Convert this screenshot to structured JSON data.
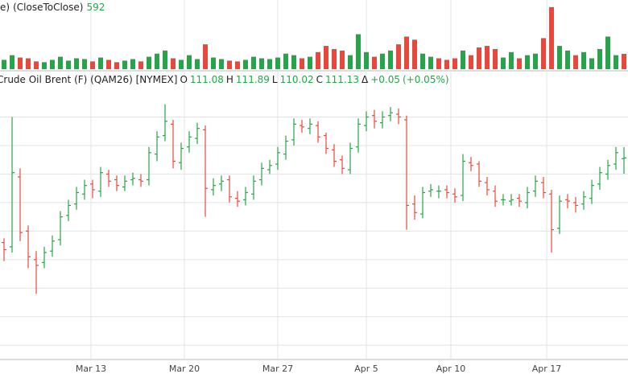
{
  "chart_data": {
    "type": "ohlc",
    "title": "Crude Oil Brent (F) (QAM26) [NYMEX]",
    "volume_prefix": "e)",
    "volume_title": "(CloseToClose)",
    "labels": {
      "open": "O",
      "high": "H",
      "low": "L",
      "close": "C",
      "change": "Δ"
    },
    "change": {
      "value": 0.05,
      "label": "+0.05"
    },
    "change_pct": {
      "value": 0.05,
      "label": "(+0.05%)"
    },
    "up_color": "#27a34a",
    "down_color": "#e8483b",
    "xlim": [
      -0.5,
      77.5
    ],
    "xticks": [
      {
        "value": 10.8,
        "label": "Mar 13"
      },
      {
        "value": 22.4,
        "label": "Mar 20"
      },
      {
        "value": 34,
        "label": "Mar 27"
      },
      {
        "value": 45,
        "label": "Apr 5"
      },
      {
        "value": 55.5,
        "label": "Apr 10"
      },
      {
        "value": 67.4,
        "label": "Apr 17"
      }
    ],
    "ylim": [
      97,
      116
    ],
    "ygrid": [
      98,
      100,
      102,
      104,
      106,
      108,
      110,
      112,
      114
    ],
    "grid": true,
    "open": [
      105.2,
      104.9,
      109.8,
      106.0,
      104.0,
      103.8,
      104.6,
      105.4,
      107.1,
      107.9,
      108.6,
      109.3,
      108.8,
      110.0,
      109.6,
      109.1,
      109.6,
      109.6,
      109.6,
      111.4,
      112.7,
      113.5,
      110.8,
      111.9,
      112.5,
      113.1,
      108.9,
      109.3,
      109.6,
      108.3,
      108.2,
      108.6,
      109.6,
      110.3,
      110.7,
      111.4,
      112.4,
      113.4,
      113.2,
      113.4,
      112.7,
      111.7,
      111.0,
      110.3,
      111.9,
      113.4,
      114.1,
      113.6,
      114.1,
      114.2,
      113.8,
      107.9,
      107.2,
      108.8,
      108.8,
      108.9,
      108.6,
      108.5,
      110.8,
      110.7,
      109.4,
      108.8,
      108.2,
      108.1,
      108.3,
      108.0,
      108.8,
      109.4,
      108.6,
      106.2,
      108.2,
      108.0,
      107.9,
      108.3,
      109.3,
      110.0,
      110.7,
      111.08
    ],
    "high": [
      105.5,
      114.0,
      110.4,
      106.4,
      104.6,
      104.9,
      105.7,
      107.4,
      108.2,
      109.1,
      109.6,
      109.6,
      110.5,
      110.3,
      109.9,
      109.9,
      110.1,
      110.0,
      111.9,
      113.0,
      114.9,
      113.8,
      112.2,
      113.0,
      113.6,
      113.4,
      109.7,
      109.9,
      109.9,
      108.8,
      109.1,
      109.9,
      110.8,
      111.0,
      111.9,
      112.7,
      113.9,
      113.8,
      113.9,
      113.7,
      112.9,
      112.1,
      111.3,
      112.2,
      113.9,
      114.4,
      114.5,
      114.4,
      114.7,
      114.6,
      114.1,
      108.5,
      109.1,
      109.3,
      109.2,
      109.2,
      109.0,
      111.4,
      111.2,
      110.9,
      109.8,
      109.2,
      108.6,
      108.6,
      108.6,
      109.1,
      109.9,
      109.8,
      108.9,
      108.5,
      108.6,
      108.4,
      108.8,
      109.6,
      110.5,
      111.0,
      111.9,
      111.89
    ],
    "low": [
      103.9,
      104.5,
      105.3,
      103.4,
      101.6,
      103.4,
      104.2,
      105.0,
      106.7,
      107.5,
      108.2,
      108.3,
      108.4,
      109.1,
      108.8,
      108.8,
      109.2,
      109.1,
      109.2,
      110.9,
      112.3,
      110.4,
      110.3,
      111.5,
      112.1,
      107.0,
      108.5,
      108.8,
      108.0,
      107.7,
      107.8,
      108.2,
      109.2,
      110.0,
      110.3,
      111.0,
      112.0,
      112.9,
      112.8,
      112.2,
      111.4,
      110.5,
      110.0,
      110.0,
      111.5,
      113.0,
      113.2,
      113.2,
      113.7,
      113.5,
      106.1,
      106.8,
      106.9,
      108.4,
      108.3,
      108.3,
      108.0,
      108.1,
      110.2,
      109.1,
      108.5,
      107.7,
      107.8,
      107.8,
      107.7,
      107.6,
      108.4,
      108.3,
      104.5,
      105.8,
      107.6,
      107.3,
      107.5,
      107.9,
      108.9,
      109.6,
      110.3,
      110.02
    ],
    "close": [
      104.7,
      110.1,
      105.9,
      104.2,
      103.6,
      104.5,
      105.3,
      107.0,
      107.8,
      108.7,
      109.2,
      108.9,
      110.1,
      109.5,
      109.2,
      109.5,
      109.7,
      109.5,
      111.5,
      112.6,
      113.7,
      110.9,
      111.8,
      112.6,
      113.2,
      109.0,
      109.2,
      109.5,
      108.4,
      108.1,
      108.7,
      109.5,
      110.4,
      110.6,
      111.5,
      112.3,
      113.5,
      113.3,
      113.5,
      112.6,
      111.8,
      110.9,
      110.4,
      111.8,
      113.5,
      114.0,
      113.7,
      114.0,
      114.3,
      114.0,
      107.8,
      107.3,
      108.7,
      108.9,
      108.8,
      108.7,
      108.4,
      110.9,
      110.6,
      109.5,
      108.9,
      108.1,
      108.2,
      108.2,
      108.1,
      108.7,
      109.5,
      108.7,
      106.1,
      108.1,
      108.1,
      107.8,
      108.4,
      109.2,
      110.1,
      110.6,
      111.5,
      111.13
    ],
    "volume": [
      360,
      540,
      450,
      420,
      300,
      270,
      360,
      480,
      330,
      420,
      390,
      300,
      450,
      360,
      270,
      330,
      390,
      300,
      480,
      600,
      720,
      420,
      360,
      540,
      390,
      960,
      450,
      390,
      330,
      300,
      360,
      480,
      420,
      390,
      450,
      600,
      540,
      420,
      480,
      660,
      900,
      780,
      720,
      540,
      1350,
      660,
      480,
      600,
      720,
      960,
      1260,
      1140,
      600,
      480,
      420,
      360,
      420,
      720,
      540,
      840,
      900,
      780,
      450,
      660,
      420,
      540,
      600,
      1200,
      2400,
      900,
      720,
      540,
      660,
      420,
      780,
      1260,
      540,
      592
    ],
    "volume_ylim": [
      0,
      2550
    ]
  }
}
